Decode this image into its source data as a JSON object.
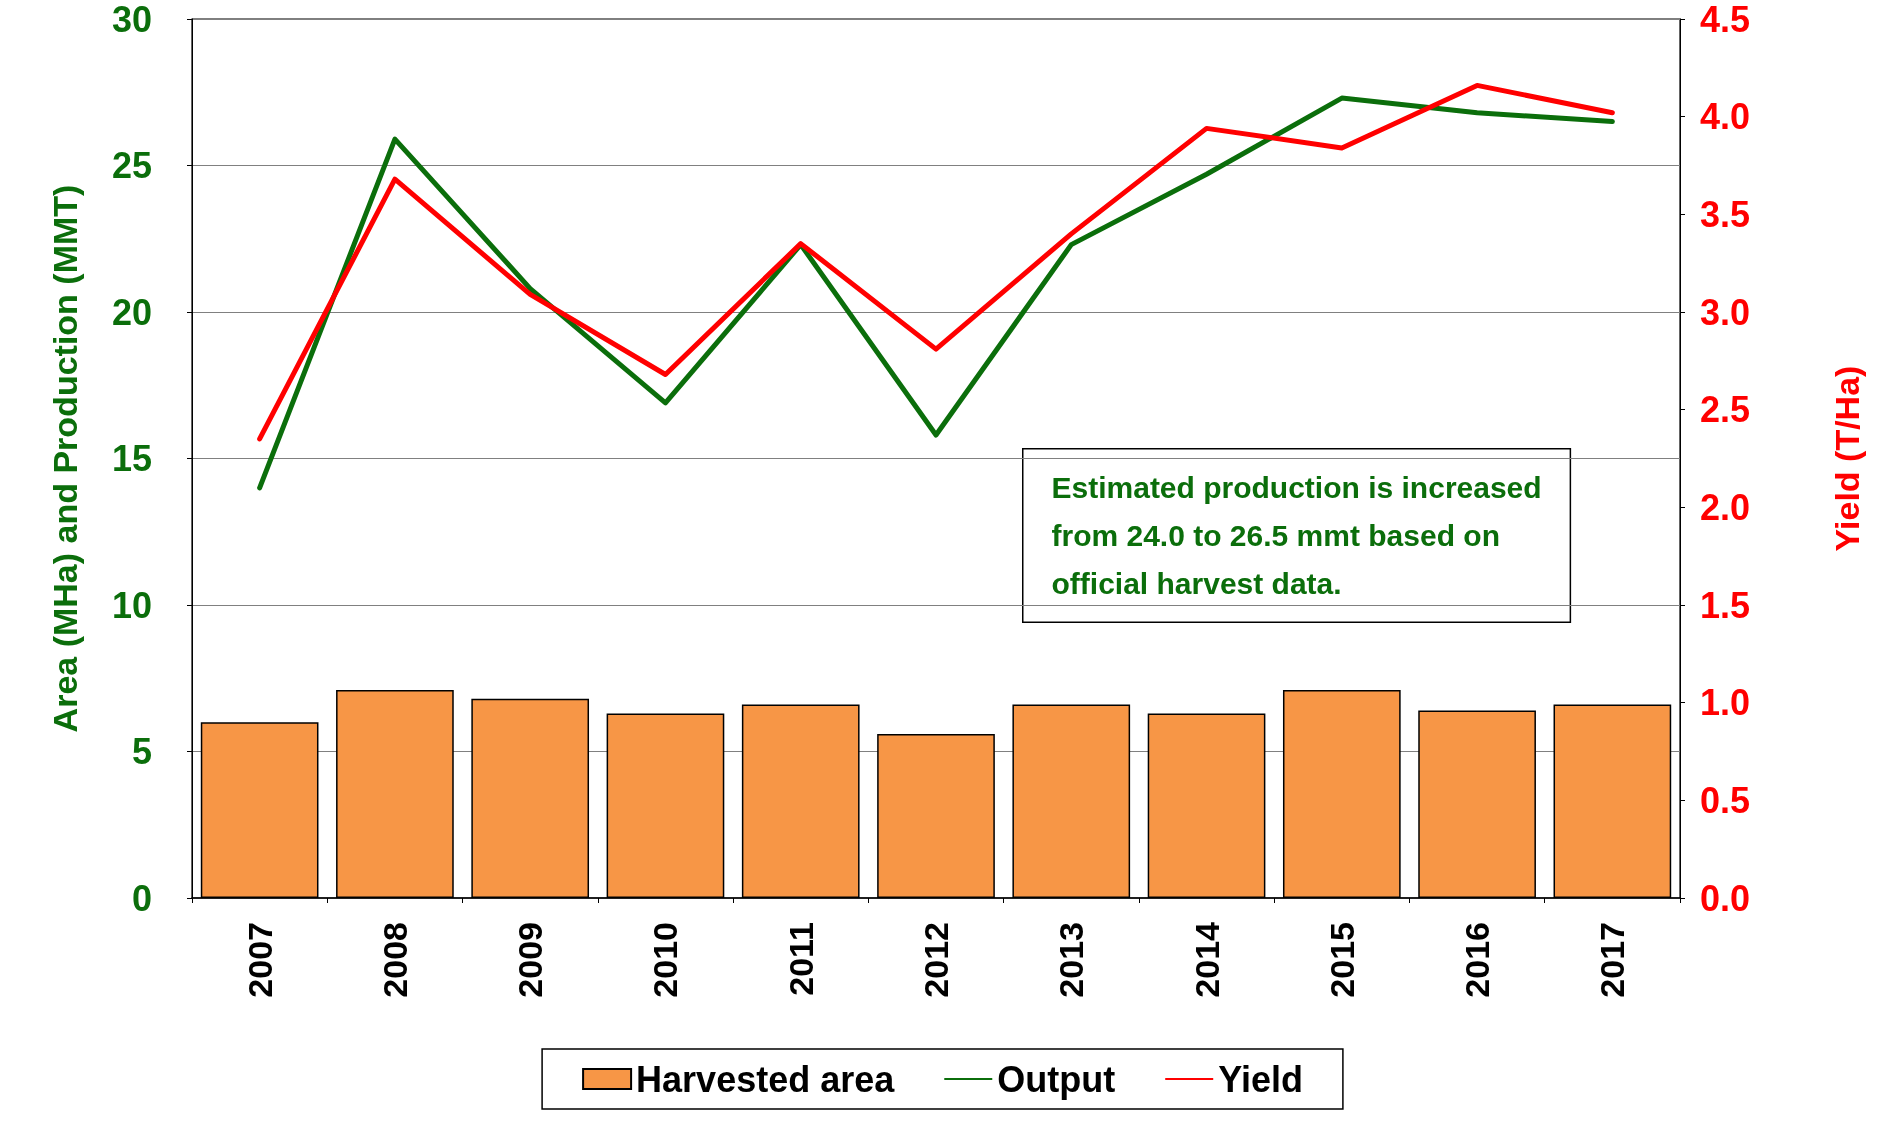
{
  "chart_data": {
    "type": "bar",
    "categories": [
      "2007",
      "2008",
      "2009",
      "2010",
      "2011",
      "2012",
      "2013",
      "2014",
      "2015",
      "2016",
      "2017"
    ],
    "ylabel": "Area (MHa) and Production (MMT)",
    "y2label": "Yield (T/Ha)",
    "series": [
      {
        "name": "Harvested area",
        "color": "#f79646",
        "values": [
          6.0,
          7.1,
          6.8,
          6.3,
          6.6,
          5.6,
          6.6,
          6.3,
          7.1,
          6.4,
          6.6
        ]
      },
      {
        "name": "Output",
        "type": "line",
        "color": "#0b6e0b",
        "values": [
          14.0,
          25.9,
          20.8,
          16.9,
          22.3,
          15.8,
          22.3,
          24.7,
          27.3,
          26.8,
          26.5
        ]
      },
      {
        "name": "Yield",
        "type": "line",
        "axis": "y2",
        "color": "#ff0000",
        "values": [
          2.35,
          3.68,
          3.09,
          2.68,
          3.35,
          2.81,
          3.4,
          3.94,
          3.84,
          4.16,
          4.02
        ]
      }
    ],
    "ylim": [
      0,
      30
    ],
    "yticks": [
      0,
      5,
      10,
      15,
      20,
      25,
      30
    ],
    "y2lim": [
      0,
      4.5
    ],
    "y2ticks": [
      {
        "value": 0,
        "label": "0.0"
      },
      {
        "value": 0.5,
        "label": "0.5"
      },
      {
        "value": 1,
        "label": "1.0"
      },
      {
        "value": 1.5,
        "label": "1.5"
      },
      {
        "value": 2,
        "label": "2.0"
      },
      {
        "value": 2.5,
        "label": "2.5"
      },
      {
        "value": 3,
        "label": "3.0"
      },
      {
        "value": 3.5,
        "label": "3.5"
      },
      {
        "value": 4,
        "label": "4.0"
      },
      {
        "value": 4.5,
        "label": "4.5"
      }
    ],
    "grid": "y",
    "legend": "bottom",
    "marker": "none",
    "line_style": "solid",
    "annotations": [
      "Estimated production is increased\nfrom 24.0 to 26.5 mmt based on\nofficial harvest data."
    ]
  }
}
